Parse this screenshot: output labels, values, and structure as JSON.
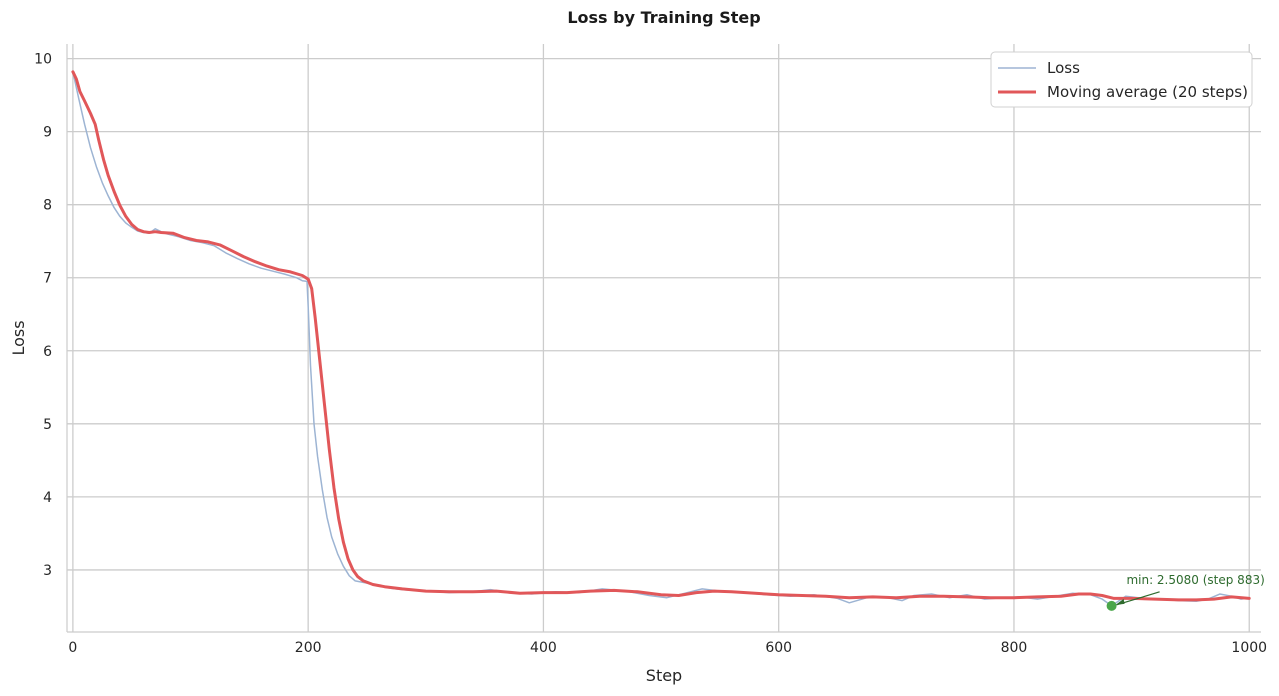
{
  "chart_data": {
    "type": "line",
    "title": "Loss by Training Step",
    "xlabel": "Step",
    "ylabel": "Loss",
    "xlim": [
      -5,
      1010
    ],
    "ylim": [
      2.15,
      10.2
    ],
    "xticks": [
      0,
      200,
      400,
      600,
      800,
      1000
    ],
    "yticks": [
      3,
      4,
      5,
      6,
      7,
      8,
      9,
      10
    ],
    "grid": true,
    "legend": "top-right",
    "series": [
      {
        "name": "Loss",
        "color": "#9db4d3",
        "points": [
          [
            0,
            9.82
          ],
          [
            5,
            9.45
          ],
          [
            10,
            9.1
          ],
          [
            15,
            8.78
          ],
          [
            20,
            8.52
          ],
          [
            25,
            8.3
          ],
          [
            30,
            8.12
          ],
          [
            35,
            7.96
          ],
          [
            40,
            7.84
          ],
          [
            45,
            7.75
          ],
          [
            50,
            7.69
          ],
          [
            55,
            7.64
          ],
          [
            60,
            7.62
          ],
          [
            65,
            7.61
          ],
          [
            70,
            7.67
          ],
          [
            75,
            7.63
          ],
          [
            80,
            7.6
          ],
          [
            90,
            7.56
          ],
          [
            100,
            7.51
          ],
          [
            110,
            7.48
          ],
          [
            120,
            7.44
          ],
          [
            130,
            7.34
          ],
          [
            140,
            7.26
          ],
          [
            150,
            7.19
          ],
          [
            160,
            7.13
          ],
          [
            170,
            7.09
          ],
          [
            180,
            7.05
          ],
          [
            190,
            7.0
          ],
          [
            195,
            6.96
          ],
          [
            199,
            6.95
          ],
          [
            200,
            6.6
          ],
          [
            202,
            5.8
          ],
          [
            205,
            5.0
          ],
          [
            208,
            4.55
          ],
          [
            212,
            4.1
          ],
          [
            216,
            3.72
          ],
          [
            220,
            3.45
          ],
          [
            225,
            3.22
          ],
          [
            230,
            3.05
          ],
          [
            235,
            2.92
          ],
          [
            240,
            2.85
          ],
          [
            250,
            2.82
          ],
          [
            260,
            2.78
          ],
          [
            270,
            2.75
          ],
          [
            280,
            2.73
          ],
          [
            300,
            2.71
          ],
          [
            320,
            2.69
          ],
          [
            340,
            2.7
          ],
          [
            355,
            2.73
          ],
          [
            370,
            2.69
          ],
          [
            390,
            2.67
          ],
          [
            410,
            2.7
          ],
          [
            430,
            2.69
          ],
          [
            450,
            2.74
          ],
          [
            470,
            2.71
          ],
          [
            490,
            2.65
          ],
          [
            505,
            2.62
          ],
          [
            520,
            2.68
          ],
          [
            535,
            2.74
          ],
          [
            550,
            2.71
          ],
          [
            570,
            2.69
          ],
          [
            590,
            2.66
          ],
          [
            610,
            2.64
          ],
          [
            630,
            2.66
          ],
          [
            650,
            2.61
          ],
          [
            660,
            2.55
          ],
          [
            675,
            2.62
          ],
          [
            690,
            2.63
          ],
          [
            705,
            2.58
          ],
          [
            715,
            2.65
          ],
          [
            730,
            2.67
          ],
          [
            745,
            2.62
          ],
          [
            760,
            2.66
          ],
          [
            775,
            2.6
          ],
          [
            790,
            2.62
          ],
          [
            805,
            2.63
          ],
          [
            820,
            2.6
          ],
          [
            835,
            2.64
          ],
          [
            850,
            2.68
          ],
          [
            865,
            2.66
          ],
          [
            875,
            2.6
          ],
          [
            883,
            2.51
          ],
          [
            895,
            2.64
          ],
          [
            910,
            2.61
          ],
          [
            925,
            2.6
          ],
          [
            940,
            2.58
          ],
          [
            955,
            2.57
          ],
          [
            965,
            2.6
          ],
          [
            975,
            2.67
          ],
          [
            985,
            2.64
          ],
          [
            993,
            2.6
          ],
          [
            1000,
            2.62
          ]
        ]
      },
      {
        "name": "Moving average (20 steps)",
        "color": "#e15759",
        "points": [
          [
            0,
            9.82
          ],
          [
            3,
            9.72
          ],
          [
            6,
            9.55
          ],
          [
            10,
            9.42
          ],
          [
            15,
            9.25
          ],
          [
            19,
            9.1
          ],
          [
            22,
            8.88
          ],
          [
            26,
            8.62
          ],
          [
            30,
            8.4
          ],
          [
            35,
            8.18
          ],
          [
            40,
            7.99
          ],
          [
            45,
            7.84
          ],
          [
            50,
            7.73
          ],
          [
            55,
            7.66
          ],
          [
            60,
            7.63
          ],
          [
            65,
            7.62
          ],
          [
            70,
            7.63
          ],
          [
            75,
            7.62
          ],
          [
            85,
            7.61
          ],
          [
            95,
            7.55
          ],
          [
            105,
            7.51
          ],
          [
            115,
            7.49
          ],
          [
            125,
            7.45
          ],
          [
            135,
            7.37
          ],
          [
            145,
            7.29
          ],
          [
            155,
            7.22
          ],
          [
            165,
            7.16
          ],
          [
            175,
            7.11
          ],
          [
            185,
            7.08
          ],
          [
            195,
            7.03
          ],
          [
            200,
            6.98
          ],
          [
            203,
            6.85
          ],
          [
            206,
            6.45
          ],
          [
            210,
            5.85
          ],
          [
            214,
            5.25
          ],
          [
            218,
            4.65
          ],
          [
            222,
            4.12
          ],
          [
            226,
            3.7
          ],
          [
            230,
            3.38
          ],
          [
            234,
            3.15
          ],
          [
            238,
            3.0
          ],
          [
            242,
            2.91
          ],
          [
            247,
            2.85
          ],
          [
            255,
            2.8
          ],
          [
            265,
            2.77
          ],
          [
            280,
            2.74
          ],
          [
            300,
            2.71
          ],
          [
            320,
            2.7
          ],
          [
            340,
            2.7
          ],
          [
            360,
            2.71
          ],
          [
            380,
            2.68
          ],
          [
            400,
            2.69
          ],
          [
            420,
            2.69
          ],
          [
            440,
            2.71
          ],
          [
            460,
            2.72
          ],
          [
            480,
            2.7
          ],
          [
            500,
            2.66
          ],
          [
            515,
            2.65
          ],
          [
            530,
            2.69
          ],
          [
            545,
            2.71
          ],
          [
            560,
            2.7
          ],
          [
            580,
            2.68
          ],
          [
            600,
            2.66
          ],
          [
            620,
            2.65
          ],
          [
            640,
            2.64
          ],
          [
            660,
            2.62
          ],
          [
            680,
            2.63
          ],
          [
            700,
            2.62
          ],
          [
            720,
            2.64
          ],
          [
            740,
            2.64
          ],
          [
            760,
            2.63
          ],
          [
            780,
            2.62
          ],
          [
            800,
            2.62
          ],
          [
            820,
            2.63
          ],
          [
            840,
            2.64
          ],
          [
            855,
            2.67
          ],
          [
            865,
            2.67
          ],
          [
            875,
            2.65
          ],
          [
            885,
            2.61
          ],
          [
            900,
            2.61
          ],
          [
            920,
            2.6
          ],
          [
            940,
            2.59
          ],
          [
            955,
            2.59
          ],
          [
            970,
            2.6
          ],
          [
            985,
            2.63
          ],
          [
            1000,
            2.61
          ]
        ]
      }
    ],
    "annotation": {
      "text": "min: 2.5080 (step 883)",
      "x": 883,
      "y": 2.508,
      "color": "#2e6b2e",
      "marker_color": "#4aa64a"
    }
  }
}
